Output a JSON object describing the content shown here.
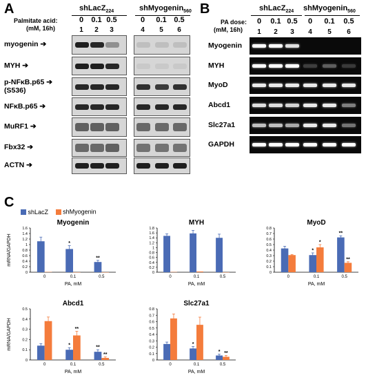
{
  "panel_a": {
    "letter": "A",
    "treatment_label": "Palmitate acid:",
    "treatment_unit": "(mM, 16h)",
    "group1": "shLacZ",
    "group1_sub": "224",
    "group2": "shMyogenin",
    "group2_sub": "560",
    "doses": [
      "0",
      "0.1",
      "0.5",
      "0",
      "0.1",
      "0.5"
    ],
    "lanes": [
      "1",
      "2",
      "3",
      "4",
      "5",
      "6"
    ],
    "rows": [
      "myogenin",
      "MYH",
      "p-NFκB.p65",
      "NFκB.p65",
      "MuRF1",
      "Fbx32",
      "ACTN"
    ],
    "row_extra": "(S536)"
  },
  "panel_b": {
    "letter": "B",
    "treatment_label": "PA dose:",
    "treatment_unit": "(mM, 16h)",
    "group1": "shLacZ",
    "group1_sub": "224",
    "group2": "shMyogenin",
    "group2_sub": "560",
    "doses": [
      "0",
      "0.1",
      "0.5",
      "0",
      "0.1",
      "0.5"
    ],
    "lanes": [
      "1",
      "2",
      "3",
      "4",
      "5",
      "6"
    ],
    "rows": [
      "Myogenin",
      "MYH",
      "MyoD",
      "Abcd1",
      "Slc27a1",
      "GAPDH"
    ]
  },
  "panel_c": {
    "letter": "C",
    "legend": [
      "shLacZ",
      "shMyogenin"
    ],
    "colors": {
      "shLacZ": "#4a6bb5",
      "shMyogenin": "#f47c3c"
    },
    "ylabel": "mRNA/GAPDH",
    "xlabel": "PA, mM"
  },
  "chart_data": [
    {
      "type": "bar",
      "title": "Myogenin",
      "categories": [
        "0",
        "0.1",
        "0.5"
      ],
      "ylim": [
        0,
        1.6
      ],
      "yticks": [
        "0",
        "0.2",
        "0.4",
        "0.6",
        "0.8",
        "1",
        "1.2",
        "1.4",
        "1.6"
      ],
      "xlabel": "PA, mM",
      "ylabel": "mRNA/GAPDH",
      "series": [
        {
          "name": "shLacZ",
          "values": [
            1.12,
            0.84,
            0.37
          ],
          "errors": [
            0.15,
            0.12,
            0.06
          ],
          "marks": [
            "",
            "*",
            "**"
          ]
        },
        {
          "name": "shMyogenin",
          "values": [
            0.01,
            0.0,
            0.0
          ],
          "errors": [
            0,
            0,
            0
          ],
          "marks": [
            "",
            "",
            ""
          ]
        }
      ]
    },
    {
      "type": "bar",
      "title": "MYH",
      "categories": [
        "0",
        "0.1",
        "0.5"
      ],
      "ylim": [
        0,
        1.8
      ],
      "yticks": [
        "0",
        "0.2",
        "0.4",
        "0.6",
        "0.8",
        "1",
        "1.2",
        "1.4",
        "1.6",
        "1.8"
      ],
      "xlabel": "PA, mM",
      "ylabel": "",
      "series": [
        {
          "name": "shLacZ",
          "values": [
            1.48,
            1.58,
            1.4
          ],
          "errors": [
            0.08,
            0.12,
            0.15
          ],
          "marks": [
            "",
            "",
            ""
          ]
        },
        {
          "name": "shMyogenin",
          "values": [
            0.01,
            0.03,
            0.0
          ],
          "errors": [
            0,
            0,
            0
          ],
          "marks": [
            "",
            "",
            ""
          ]
        }
      ]
    },
    {
      "type": "bar",
      "title": "MyoD",
      "categories": [
        "0",
        "0.1",
        "0.5"
      ],
      "ylim": [
        0,
        0.8
      ],
      "yticks": [
        "0",
        "0.1",
        "0.2",
        "0.3",
        "0.4",
        "0.5",
        "0.6",
        "0.7",
        "0.8"
      ],
      "xlabel": "PA, mM",
      "ylabel": "",
      "series": [
        {
          "name": "shLacZ",
          "values": [
            0.43,
            0.31,
            0.63
          ],
          "errors": [
            0.04,
            0.04,
            0.03
          ],
          "marks": [
            "",
            "*",
            "**"
          ]
        },
        {
          "name": "shMyogenin",
          "values": [
            0.31,
            0.45,
            0.17
          ],
          "errors": [
            0.01,
            0.05,
            0.02
          ],
          "marks": [
            "",
            "*",
            "**"
          ]
        }
      ]
    },
    {
      "type": "bar",
      "title": "Abcd1",
      "categories": [
        "0",
        "0.1",
        "0.5"
      ],
      "ylim": [
        0,
        0.5
      ],
      "yticks": [
        "0",
        "0.1",
        "0.2",
        "0.3",
        "0.4",
        "0.5"
      ],
      "xlabel": "PA, mM",
      "ylabel": "mRNA/GAPDH",
      "series": [
        {
          "name": "shLacZ",
          "values": [
            0.14,
            0.1,
            0.08
          ],
          "errors": [
            0.02,
            0.02,
            0.02
          ],
          "marks": [
            "",
            "*",
            "**"
          ]
        },
        {
          "name": "shMyogenin",
          "values": [
            0.38,
            0.24,
            0.02
          ],
          "errors": [
            0.04,
            0.04,
            0.01
          ],
          "marks": [
            "",
            "**",
            "**"
          ]
        }
      ]
    },
    {
      "type": "bar",
      "title": "Slc27a1",
      "categories": [
        "0",
        "0.1",
        "0.5"
      ],
      "ylim": [
        0,
        0.8
      ],
      "yticks": [
        "0",
        "0.1",
        "0.2",
        "0.3",
        "0.4",
        "0.5",
        "0.6",
        "0.7",
        "0.8"
      ],
      "xlabel": "PA, mM",
      "ylabel": "",
      "series": [
        {
          "name": "shLacZ",
          "values": [
            0.25,
            0.18,
            0.07
          ],
          "errors": [
            0.03,
            0.03,
            0.02
          ],
          "marks": [
            "",
            "*",
            "*"
          ]
        },
        {
          "name": "shMyogenin",
          "values": [
            0.65,
            0.55,
            0.05
          ],
          "errors": [
            0.07,
            0.12,
            0.02
          ],
          "marks": [
            "",
            "",
            "**"
          ]
        }
      ]
    }
  ]
}
